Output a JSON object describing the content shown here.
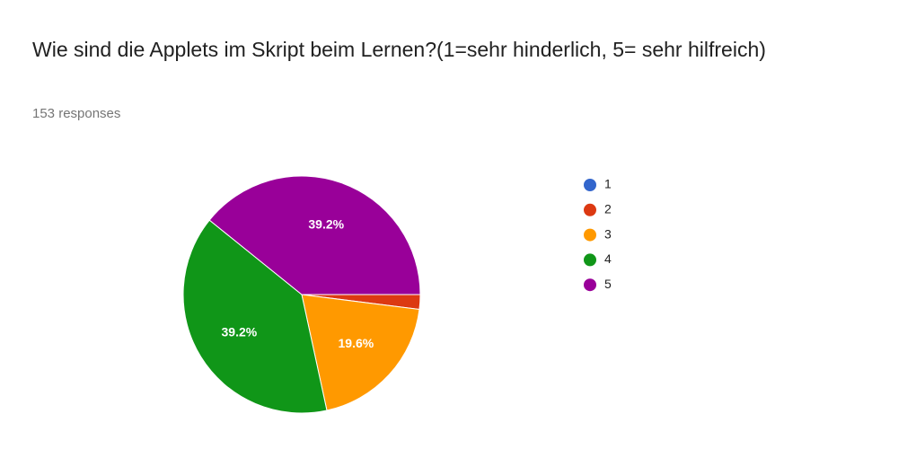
{
  "chart_data": {
    "type": "pie",
    "title": "Wie sind die Applets im Skript beim Lernen?(1=sehr hinderlich, 5= sehr hilfreich)",
    "subtitle": "153 responses",
    "categories": [
      "1",
      "2",
      "3",
      "4",
      "5"
    ],
    "values": [
      0,
      2,
      19.6,
      39.2,
      39.2
    ],
    "value_labels": [
      null,
      null,
      "19.6%",
      "39.2%",
      "39.2%"
    ],
    "colors": [
      "#3366cc",
      "#dc3912",
      "#ff9900",
      "#109618",
      "#990099"
    ],
    "legend": "right"
  }
}
